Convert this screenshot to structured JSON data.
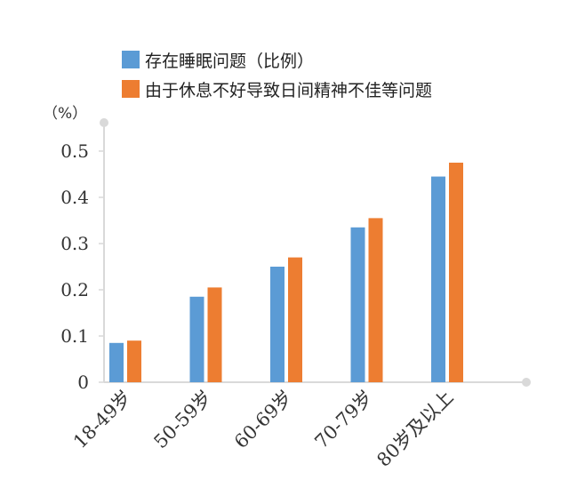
{
  "chart_data": {
    "type": "bar",
    "title": "",
    "xlabel": "",
    "ylabel": "（%）",
    "categories": [
      "18-49岁",
      "50-59岁",
      "60-69岁",
      "70-79岁",
      "80岁及以上"
    ],
    "series": [
      {
        "name": "存在睡眠问题（比例）",
        "color": "#5b9bd5",
        "values": [
          0.085,
          0.185,
          0.25,
          0.335,
          0.445
        ]
      },
      {
        "name": "由于休息不好导致日间精神不佳等问题",
        "color": "#ed7d31",
        "values": [
          0.09,
          0.205,
          0.27,
          0.355,
          0.475
        ]
      }
    ],
    "ylim": [
      0,
      0.55
    ],
    "yticks": [
      "0",
      "0.1",
      "0.2",
      "0.3",
      "0.4",
      "0.5"
    ],
    "legend_position": "top-center",
    "grid": false
  }
}
